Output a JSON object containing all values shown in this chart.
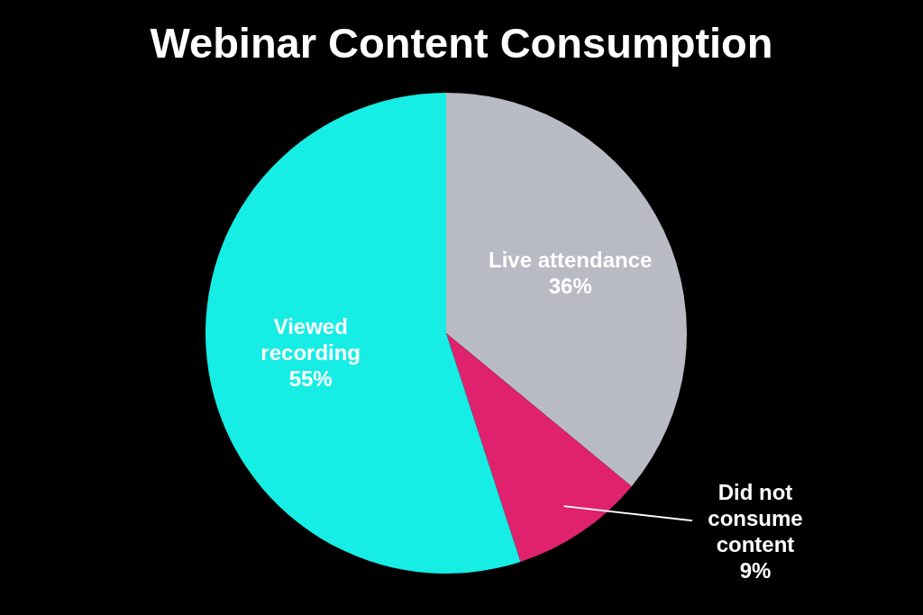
{
  "chart_data": {
    "type": "pie",
    "title": "Webinar Content Consumption",
    "categories": [
      "Live attendance",
      "Did not consume content",
      "Viewed recording"
    ],
    "values": [
      36,
      9,
      55
    ],
    "colors": [
      "#b8bac4",
      "#e0226e",
      "#16ede4"
    ],
    "value_labels": [
      "36%",
      "9%",
      "55%"
    ]
  }
}
